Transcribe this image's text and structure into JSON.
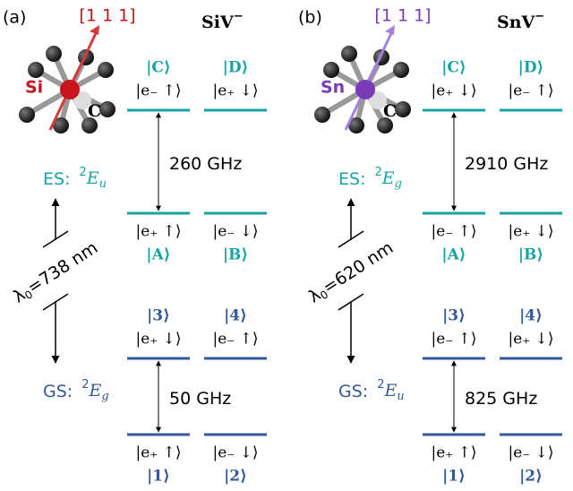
{
  "panels": [
    {
      "label": "(a)",
      "defect": {
        "name": "SiV",
        "charge": "−"
      },
      "axis": "[1 1 1]",
      "dopant": "Si",
      "carbon": "C",
      "excited": {
        "label": "ES:",
        "term": {
          "sup": "2",
          "symbol": "E",
          "sub": "u"
        },
        "upper": [
          {
            "name": "|C⟩",
            "ket": "|e₋ ↑⟩"
          },
          {
            "name": "|D⟩",
            "ket": "|e₊ ↓⟩"
          }
        ],
        "lower": [
          {
            "name": "|A⟩",
            "ket": "|e₊ ↑⟩"
          },
          {
            "name": "|B⟩",
            "ket": "|e₋ ↓⟩"
          }
        ],
        "splitting": "260 GHz"
      },
      "ground": {
        "label": "GS:",
        "term": {
          "sup": "2",
          "symbol": "E",
          "sub": "g"
        },
        "upper": [
          {
            "name": "|3⟩",
            "ket": "|e₊ ↓⟩"
          },
          {
            "name": "|4⟩",
            "ket": "|e₋ ↑⟩"
          }
        ],
        "lower": [
          {
            "name": "|1⟩",
            "ket": "|e₊ ↑⟩"
          },
          {
            "name": "|2⟩",
            "ket": "|e₋ ↓⟩"
          }
        ],
        "splitting": "50 GHz"
      },
      "transition": {
        "symbol": "λ",
        "sub": "0",
        "text": "=738 nm"
      }
    },
    {
      "label": "(b)",
      "defect": {
        "name": "SnV",
        "charge": "−"
      },
      "axis": "[1 1 1]",
      "dopant": "Sn",
      "carbon": "C",
      "excited": {
        "label": "ES:",
        "term": {
          "sup": "2",
          "symbol": "E",
          "sub": "g"
        },
        "upper": [
          {
            "name": "|C⟩",
            "ket": "|e₊ ↓⟩"
          },
          {
            "name": "|D⟩",
            "ket": "|e₋ ↑⟩"
          }
        ],
        "lower": [
          {
            "name": "|A⟩",
            "ket": "|e₋ ↑⟩"
          },
          {
            "name": "|B⟩",
            "ket": "|e₊ ↓⟩"
          }
        ],
        "splitting": "2910 GHz"
      },
      "ground": {
        "label": "GS:",
        "term": {
          "sup": "2",
          "symbol": "E",
          "sub": "u"
        },
        "upper": [
          {
            "name": "|3⟩",
            "ket": "|e₋ ↑⟩"
          },
          {
            "name": "|4⟩",
            "ket": "|e₊ ↓⟩"
          }
        ],
        "lower": [
          {
            "name": "|1⟩",
            "ket": "|e₊ ↑⟩"
          },
          {
            "name": "|2⟩",
            "ket": "|e₋ ↓⟩"
          }
        ],
        "splitting": "825 GHz"
      },
      "transition": {
        "symbol": "λ",
        "sub": "0",
        "text": "=620 nm"
      }
    }
  ]
}
